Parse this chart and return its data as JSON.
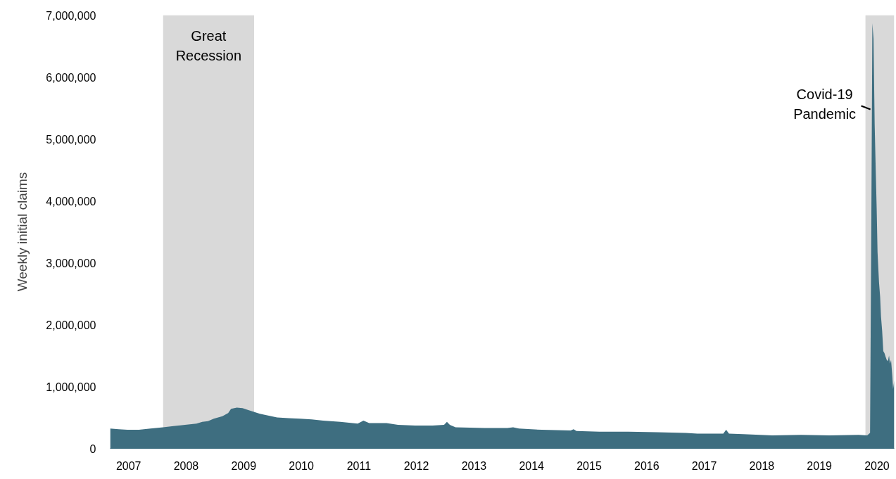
{
  "chart_data": {
    "type": "area",
    "ylabel": "Weekly initial claims",
    "x": [
      2007.0,
      2007.15,
      2007.3,
      2007.5,
      2007.7,
      2007.92,
      2008.1,
      2008.3,
      2008.5,
      2008.6,
      2008.7,
      2008.8,
      2008.95,
      2009.05,
      2009.1,
      2009.2,
      2009.3,
      2009.4,
      2009.6,
      2009.9,
      2010.1,
      2010.3,
      2010.5,
      2010.7,
      2011.0,
      2011.3,
      2011.4,
      2011.5,
      2011.8,
      2012.0,
      2012.3,
      2012.6,
      2012.8,
      2012.85,
      2012.9,
      2013.0,
      2013.5,
      2013.9,
      2014.0,
      2014.1,
      2014.5,
      2015.0,
      2015.05,
      2015.1,
      2015.5,
      2016.0,
      2016.5,
      2017.0,
      2017.2,
      2017.65,
      2017.7,
      2017.75,
      2018.0,
      2018.5,
      2019.0,
      2019.5,
      2020.0,
      2020.15,
      2020.2,
      2020.22,
      2020.24,
      2020.26,
      2020.28,
      2020.3,
      2020.315,
      2020.33,
      2020.355,
      2020.375,
      2020.39,
      2020.41,
      2020.43,
      2020.45,
      2020.47,
      2020.49,
      2020.51,
      2020.53,
      2020.545,
      2020.565,
      2020.585,
      2020.6,
      2020.62
    ],
    "values": [
      320000,
      310000,
      300000,
      300000,
      320000,
      340000,
      360000,
      380000,
      400000,
      430000,
      440000,
      480000,
      520000,
      570000,
      640000,
      660000,
      650000,
      620000,
      560000,
      500000,
      490000,
      480000,
      470000,
      450000,
      430000,
      400000,
      450000,
      410000,
      410000,
      380000,
      370000,
      370000,
      380000,
      430000,
      380000,
      340000,
      330000,
      330000,
      340000,
      320000,
      300000,
      290000,
      310000,
      280000,
      270000,
      270000,
      260000,
      250000,
      240000,
      240000,
      300000,
      240000,
      230000,
      210000,
      220000,
      210000,
      220000,
      210000,
      250000,
      3310000,
      6870000,
      6620000,
      5240000,
      4440000,
      3870000,
      3170000,
      2690000,
      2450000,
      2130000,
      1900000,
      1570000,
      1540000,
      1480000,
      1430000,
      1410000,
      1500000,
      1370000,
      1430000,
      1190000,
      960000,
      1100000
    ],
    "color": "#3e6e80",
    "xlim": [
      2007.0,
      2020.62
    ],
    "xticks": [
      {
        "value": 2007.32,
        "label": "2007"
      },
      {
        "value": 2008.32,
        "label": "2008"
      },
      {
        "value": 2009.32,
        "label": "2009"
      },
      {
        "value": 2010.32,
        "label": "2010"
      },
      {
        "value": 2011.32,
        "label": "2011"
      },
      {
        "value": 2012.32,
        "label": "2012"
      },
      {
        "value": 2013.32,
        "label": "2013"
      },
      {
        "value": 2014.32,
        "label": "2014"
      },
      {
        "value": 2015.32,
        "label": "2015"
      },
      {
        "value": 2016.32,
        "label": "2016"
      },
      {
        "value": 2017.32,
        "label": "2017"
      },
      {
        "value": 2018.32,
        "label": "2018"
      },
      {
        "value": 2019.32,
        "label": "2019"
      },
      {
        "value": 2020.32,
        "label": "2020"
      }
    ],
    "ylim": [
      0,
      7000000
    ],
    "yticks": [
      0,
      {
        "value": 1000000,
        "label": "1,000,000"
      },
      {
        "value": 2000000,
        "label": "2,000,000"
      },
      {
        "value": 3000000,
        "label": "3,000,000"
      },
      {
        "value": 4000000,
        "label": "4,000,000"
      },
      {
        "value": 5000000,
        "label": "5,000,000"
      },
      {
        "value": 6000000,
        "label": "6,000,000"
      },
      {
        "value": 7000000,
        "label": "7,000,000"
      }
    ],
    "bands": [
      {
        "axis": "x",
        "from": 2007.92,
        "to": 2009.5,
        "label": "Great Recession",
        "color": "#d9d9d9"
      },
      {
        "axis": "x",
        "from": 2020.12,
        "to": 2020.62,
        "label": "Covid-19 Pandemic",
        "color": "#d9d9d9"
      }
    ],
    "grid": false
  }
}
